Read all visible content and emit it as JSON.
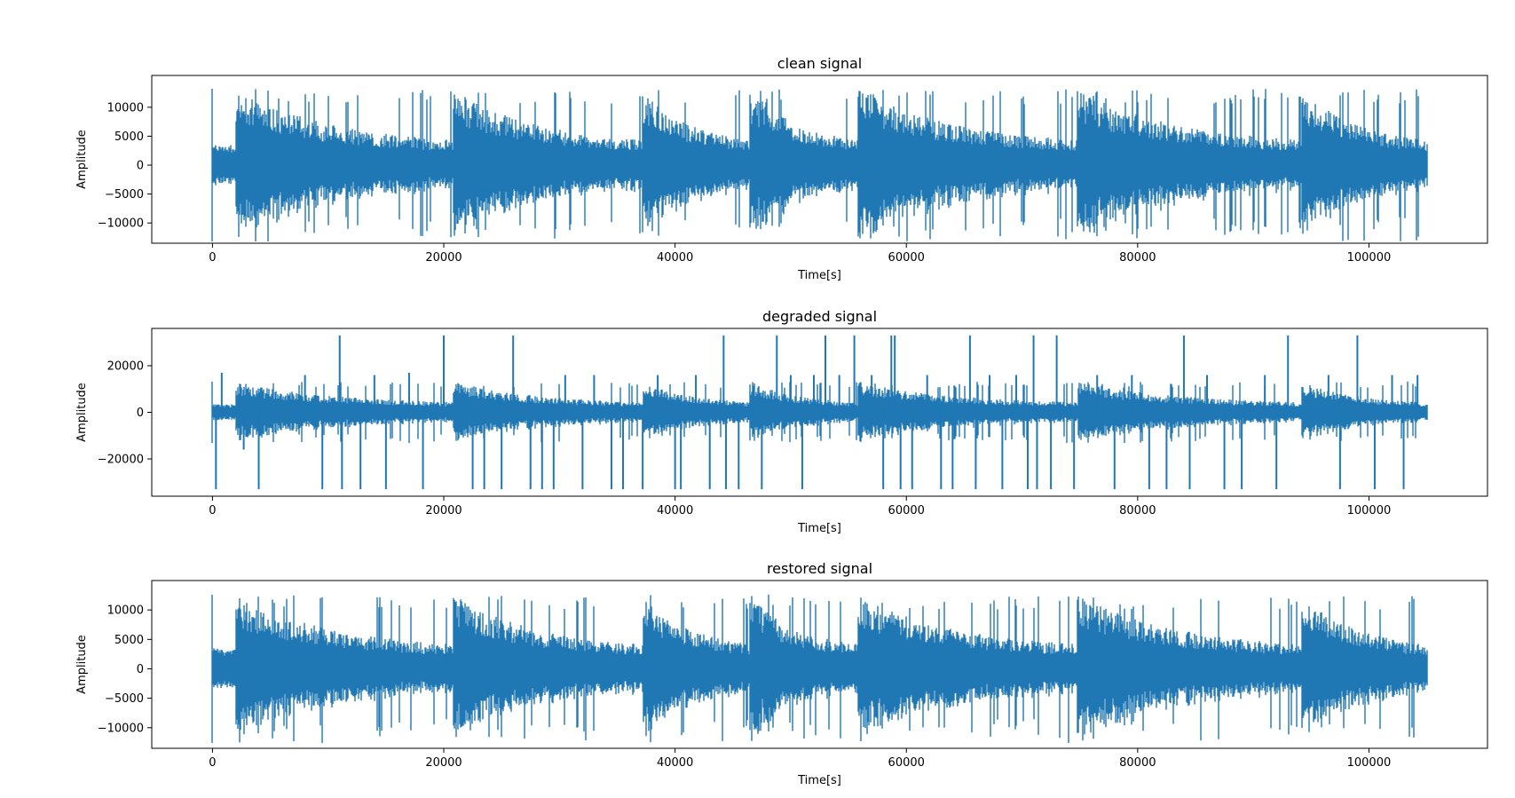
{
  "chart_data": [
    {
      "type": "line",
      "title": "clean signal",
      "xlabel": "Time[s]",
      "ylabel": "Amplitude",
      "xlim": [
        -5250,
        110250
      ],
      "ylim": [
        -13500,
        15500
      ],
      "xticks": [
        0,
        20000,
        40000,
        60000,
        80000,
        100000
      ],
      "xtick_labels": [
        "0",
        "20000",
        "40000",
        "60000",
        "80000",
        "100000"
      ],
      "yticks": [
        -10000,
        -5000,
        0,
        5000,
        10000
      ],
      "ytick_labels": [
        "−10000",
        "−5000",
        "0",
        "5000",
        "10000"
      ],
      "grid": false,
      "color": "#1f77b4",
      "n_samples": 105000,
      "segments": [
        {
          "start": 0,
          "end": 2000,
          "peak": 3500
        },
        {
          "start": 2000,
          "end": 20800,
          "peak": 13200
        },
        {
          "start": 20800,
          "end": 37200,
          "peak": 13200
        },
        {
          "start": 37200,
          "end": 46500,
          "peak": 13200
        },
        {
          "start": 46500,
          "end": 55800,
          "peak": 13200
        },
        {
          "start": 55800,
          "end": 74800,
          "peak": 13200
        },
        {
          "start": 74800,
          "end": 94200,
          "peak": 13200
        },
        {
          "start": 94200,
          "end": 105000,
          "peak": 13200
        }
      ],
      "spikes": []
    },
    {
      "type": "line",
      "title": "degraded signal",
      "xlabel": "Time[s]",
      "ylabel": "Amplitude",
      "xlim": [
        -5250,
        110250
      ],
      "ylim": [
        -36000,
        36000
      ],
      "xticks": [
        0,
        20000,
        40000,
        60000,
        80000,
        100000
      ],
      "xtick_labels": [
        "0",
        "20000",
        "40000",
        "60000",
        "80000",
        "100000"
      ],
      "yticks": [
        -20000,
        0,
        20000
      ],
      "ytick_labels": [
        "−20000",
        "0",
        "20000"
      ],
      "grid": false,
      "color": "#1f77b4",
      "n_samples": 105000,
      "segments": [
        {
          "start": 0,
          "end": 2000,
          "peak": 3500
        },
        {
          "start": 2000,
          "end": 20800,
          "peak": 13200
        },
        {
          "start": 20800,
          "end": 37200,
          "peak": 13200
        },
        {
          "start": 37200,
          "end": 46500,
          "peak": 13200
        },
        {
          "start": 46500,
          "end": 55800,
          "peak": 13200
        },
        {
          "start": 55800,
          "end": 74800,
          "peak": 13200
        },
        {
          "start": 74800,
          "end": 94200,
          "peak": 13200
        },
        {
          "start": 94200,
          "end": 105000,
          "peak": 13200
        }
      ],
      "spikes": [
        [
          300,
          -33000
        ],
        [
          800,
          17000
        ],
        [
          2700,
          -16000
        ],
        [
          4000,
          -33000
        ],
        [
          8000,
          16000
        ],
        [
          9500,
          -33000
        ],
        [
          11000,
          33000
        ],
        [
          11200,
          -33000
        ],
        [
          12800,
          -33000
        ],
        [
          14000,
          16000
        ],
        [
          15000,
          -33000
        ],
        [
          17000,
          17000
        ],
        [
          18200,
          -33000
        ],
        [
          20000,
          33000
        ],
        [
          22500,
          -33000
        ],
        [
          23500,
          -33000
        ],
        [
          25000,
          -33000
        ],
        [
          26000,
          33000
        ],
        [
          27500,
          -33000
        ],
        [
          28500,
          -33000
        ],
        [
          29500,
          -33000
        ],
        [
          30500,
          16000
        ],
        [
          32000,
          -33000
        ],
        [
          33000,
          16000
        ],
        [
          34500,
          -33000
        ],
        [
          35500,
          -33000
        ],
        [
          37200,
          -33000
        ],
        [
          38500,
          16000
        ],
        [
          40000,
          -33000
        ],
        [
          40500,
          -33000
        ],
        [
          41800,
          16000
        ],
        [
          43000,
          -33000
        ],
        [
          44200,
          33000
        ],
        [
          44400,
          -33000
        ],
        [
          45500,
          -33000
        ],
        [
          47500,
          -33000
        ],
        [
          48800,
          33000
        ],
        [
          50000,
          16000
        ],
        [
          51000,
          -33000
        ],
        [
          52000,
          16000
        ],
        [
          53000,
          33000
        ],
        [
          54200,
          16000
        ],
        [
          55500,
          33000
        ],
        [
          57000,
          16000
        ],
        [
          58000,
          -33000
        ],
        [
          58700,
          33000
        ],
        [
          59000,
          33000
        ],
        [
          59500,
          -33000
        ],
        [
          60500,
          -33000
        ],
        [
          61800,
          16000
        ],
        [
          63000,
          -33000
        ],
        [
          64000,
          -33000
        ],
        [
          65500,
          33000
        ],
        [
          66000,
          -33000
        ],
        [
          67200,
          16000
        ],
        [
          68300,
          -33000
        ],
        [
          69500,
          16000
        ],
        [
          70500,
          -33000
        ],
        [
          71000,
          33000
        ],
        [
          71300,
          -33000
        ],
        [
          72500,
          -33000
        ],
        [
          73000,
          33000
        ],
        [
          74500,
          -33000
        ],
        [
          76500,
          16000
        ],
        [
          78000,
          -33000
        ],
        [
          79500,
          16000
        ],
        [
          81000,
          -33000
        ],
        [
          82500,
          -33000
        ],
        [
          84000,
          33000
        ],
        [
          84500,
          -33000
        ],
        [
          86000,
          16000
        ],
        [
          87500,
          -33000
        ],
        [
          89000,
          -33000
        ],
        [
          91000,
          16000
        ],
        [
          92000,
          -33000
        ],
        [
          93000,
          33000
        ],
        [
          96500,
          16000
        ],
        [
          97500,
          -33000
        ],
        [
          99000,
          33000
        ],
        [
          100500,
          -33000
        ],
        [
          102000,
          16000
        ],
        [
          103000,
          -33000
        ],
        [
          104200,
          16000
        ]
      ]
    },
    {
      "type": "line",
      "title": "restored signal",
      "xlabel": "Time[s]",
      "ylabel": "Amplitude",
      "xlim": [
        -5250,
        110250
      ],
      "ylim": [
        -13500,
        15000
      ],
      "xticks": [
        0,
        20000,
        40000,
        60000,
        80000,
        100000
      ],
      "xtick_labels": [
        "0",
        "20000",
        "40000",
        "60000",
        "80000",
        "100000"
      ],
      "yticks": [
        -10000,
        -5000,
        0,
        5000,
        10000
      ],
      "ytick_labels": [
        "−10000",
        "−5000",
        "0",
        "5000",
        "10000"
      ],
      "grid": false,
      "color": "#1f77b4",
      "n_samples": 105000,
      "segments": [
        {
          "start": 0,
          "end": 2000,
          "peak": 3500
        },
        {
          "start": 2000,
          "end": 20800,
          "peak": 12600
        },
        {
          "start": 20800,
          "end": 37200,
          "peak": 12600
        },
        {
          "start": 37200,
          "end": 46500,
          "peak": 12600
        },
        {
          "start": 46500,
          "end": 55800,
          "peak": 12600
        },
        {
          "start": 55800,
          "end": 74800,
          "peak": 12600
        },
        {
          "start": 74800,
          "end": 94200,
          "peak": 12600
        },
        {
          "start": 94200,
          "end": 105000,
          "peak": 12600
        }
      ],
      "spikes": []
    }
  ]
}
